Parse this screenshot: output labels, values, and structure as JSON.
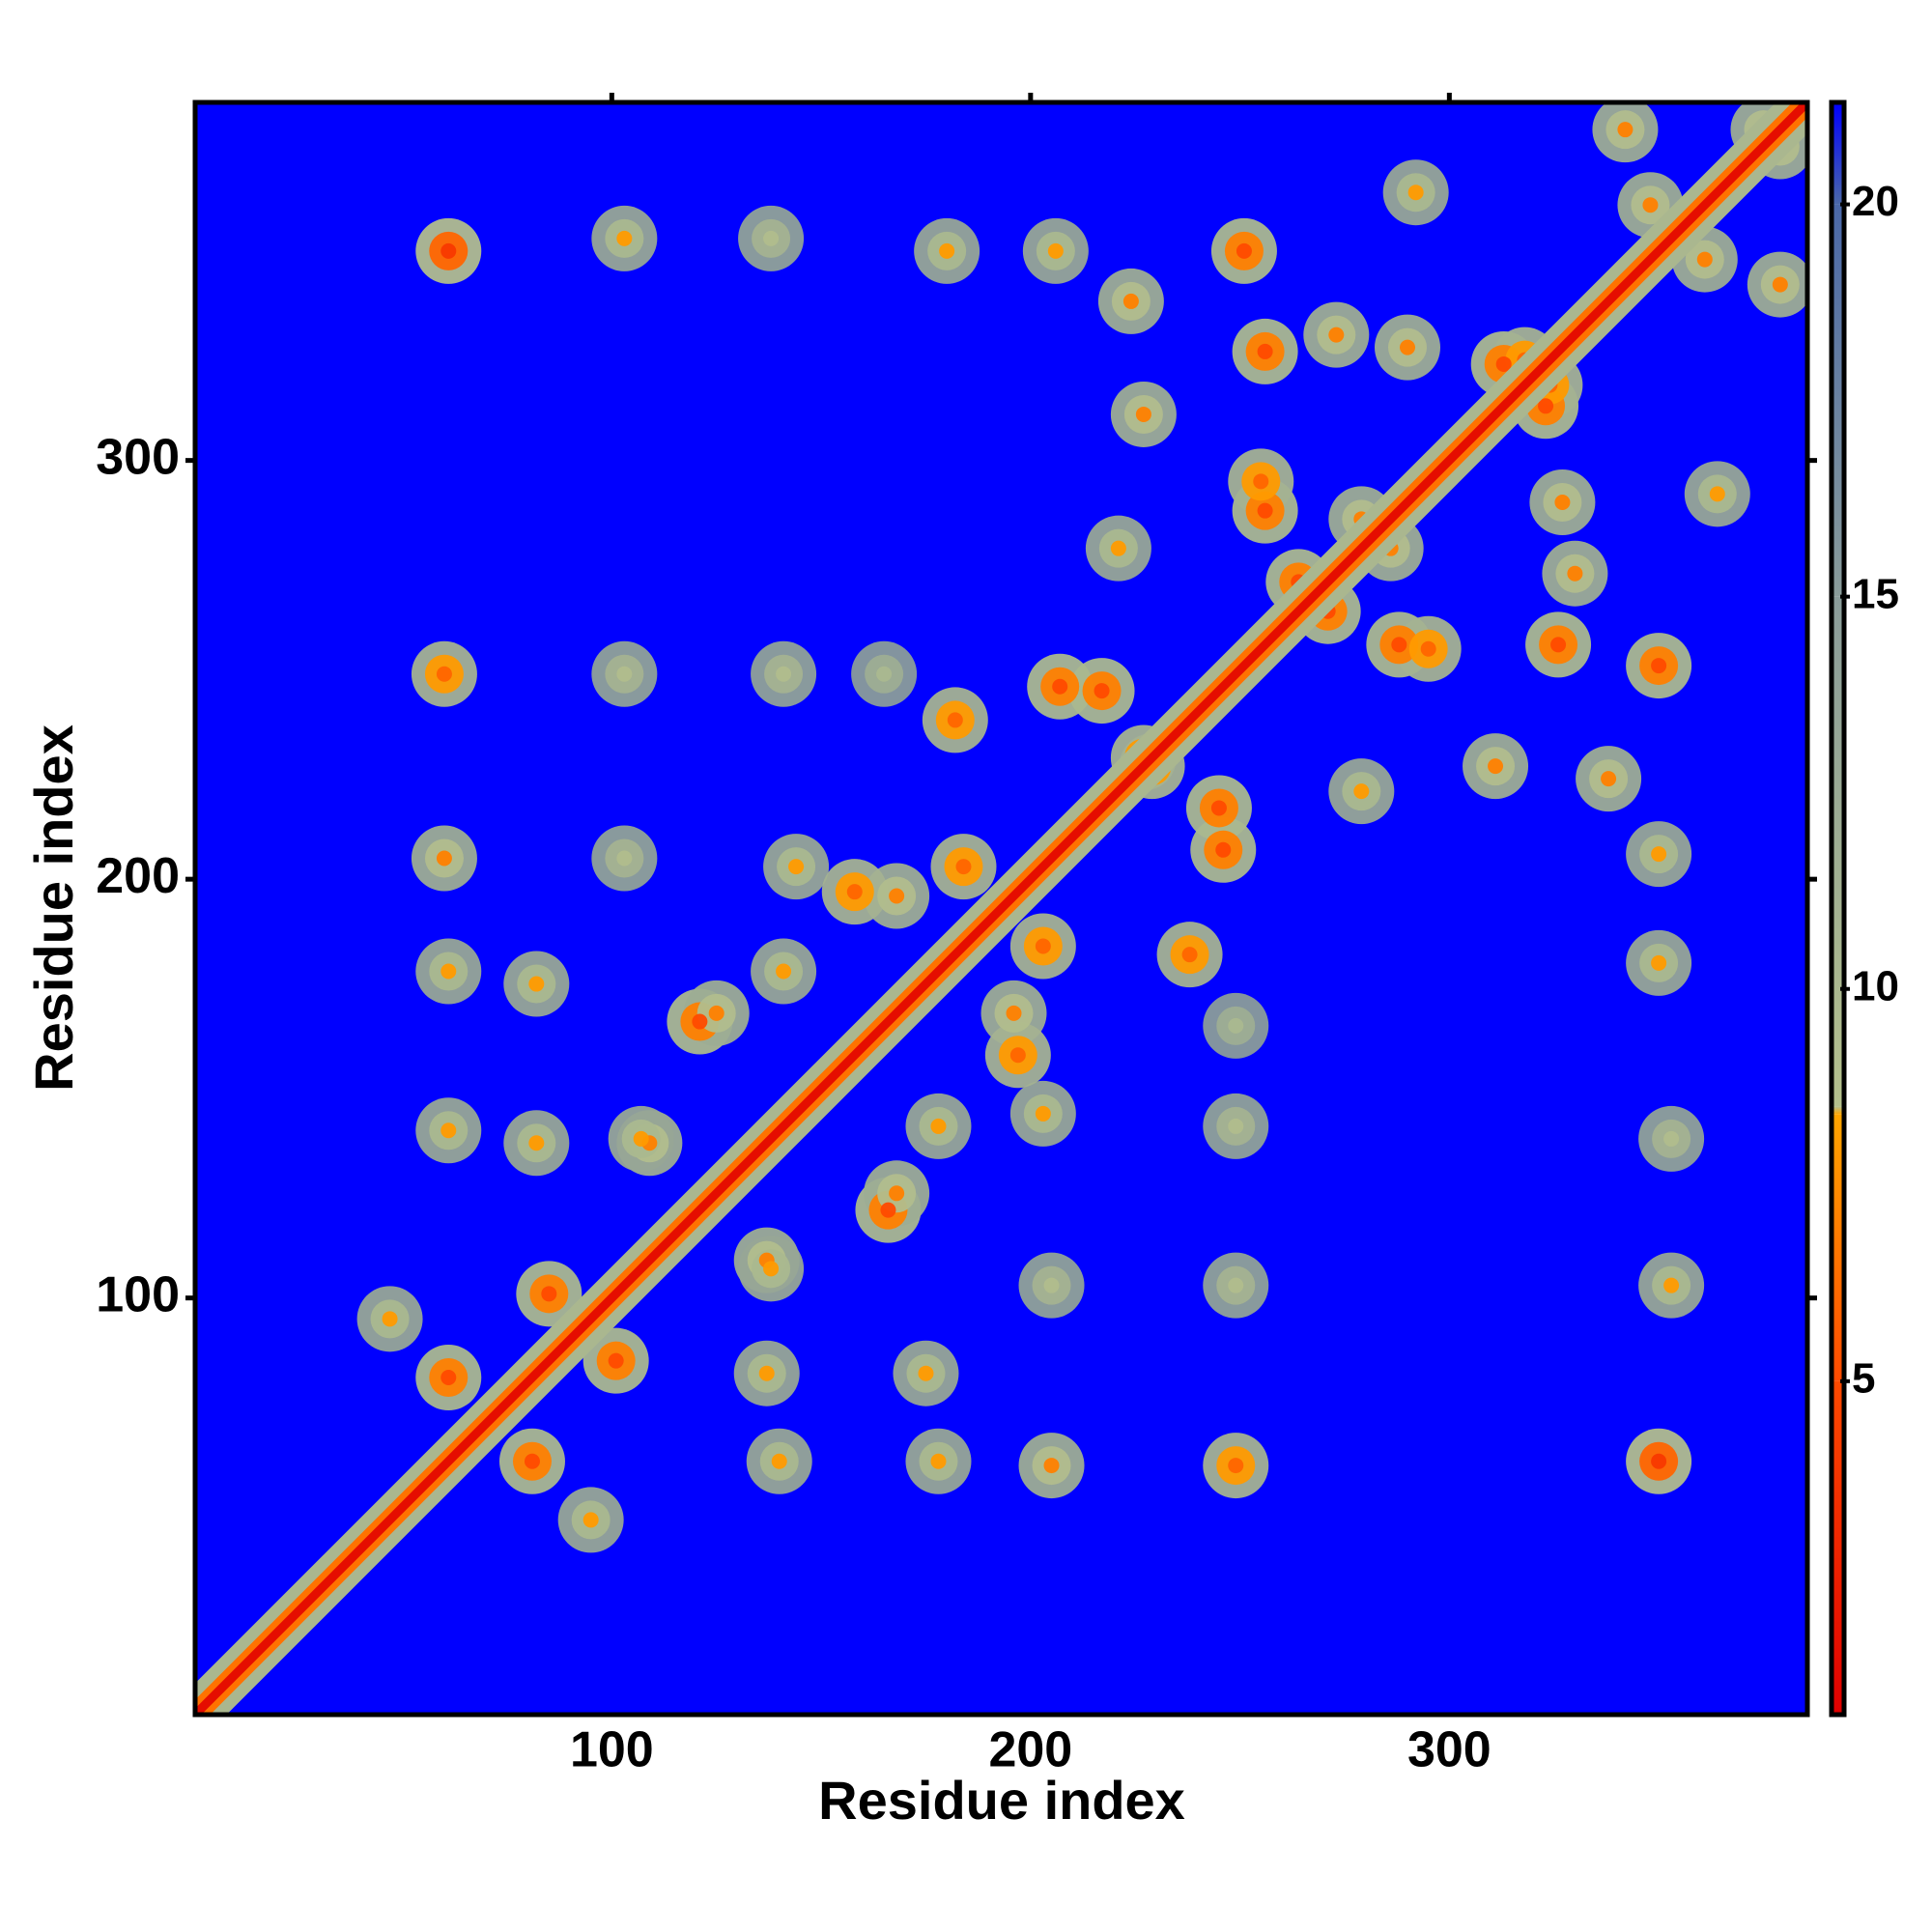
{
  "chart_data": {
    "type": "heatmap",
    "xlabel": "Residue index",
    "ylabel": "Residue index",
    "xlim": [
      0.5,
      385.5
    ],
    "ylim": [
      0.5,
      385.5
    ],
    "xticks": [
      100,
      200,
      300
    ],
    "yticks": [
      100,
      200,
      300
    ],
    "zlim": [
      0.75,
      21.3
    ],
    "zticks": [
      5,
      10,
      15,
      20
    ],
    "colorscale": [
      [
        0.75,
        "#e00000"
      ],
      [
        5,
        "#ff4a00"
      ],
      [
        8.4,
        "#ffa500"
      ],
      [
        8.5,
        "#b4c08c"
      ],
      [
        15,
        "#8a9c9a"
      ],
      [
        20,
        "#4a68a8"
      ],
      [
        21.3,
        "#0000ff"
      ]
    ],
    "background": 21.3,
    "diagonal": {
      "x": [
        1,
        385
      ],
      "y": [
        1,
        385
      ],
      "values": [
        1.5,
        1.5
      ]
    },
    "contacts": {
      "x": [
        140,
        178,
        205,
        249,
        350,
        353,
        353,
        350,
        249,
        205,
        175,
        137,
        249,
        203,
        166,
        137,
        178,
        196,
        238,
        246,
        311,
        279,
        338,
        350,
        350,
        326,
        288,
        264,
        364,
        323,
        361,
        379,
        379,
        101,
        81,
        95,
        107,
        125,
        158,
        184,
        229,
        217,
        255,
        279,
        290,
        273,
        318,
        249
      ],
      "y": [
        61,
        61,
        60,
        60,
        61,
        103,
        138,
        180,
        103,
        103,
        82,
        82,
        141,
        144,
        121,
        109,
        141,
        168,
        182,
        207,
        227,
        221,
        224,
        206,
        251,
        256,
        256,
        271,
        292,
        313,
        348,
        342,
        375,
        85,
        61,
        47,
        138,
        168,
        197,
        203,
        227,
        245,
        295,
        286,
        327,
        330,
        324,
        165
      ],
      "values": [
        10,
        10,
        9,
        8,
        6,
        10,
        11,
        10,
        11,
        11,
        10,
        10,
        11,
        10,
        7,
        9,
        10,
        9,
        8,
        7,
        9,
        10,
        9,
        10,
        7,
        7,
        7,
        7,
        10,
        7,
        9,
        9,
        9,
        7,
        7,
        10,
        10,
        9,
        8,
        8,
        8,
        7,
        8,
        9,
        9,
        9,
        8,
        12
      ]
    }
  }
}
